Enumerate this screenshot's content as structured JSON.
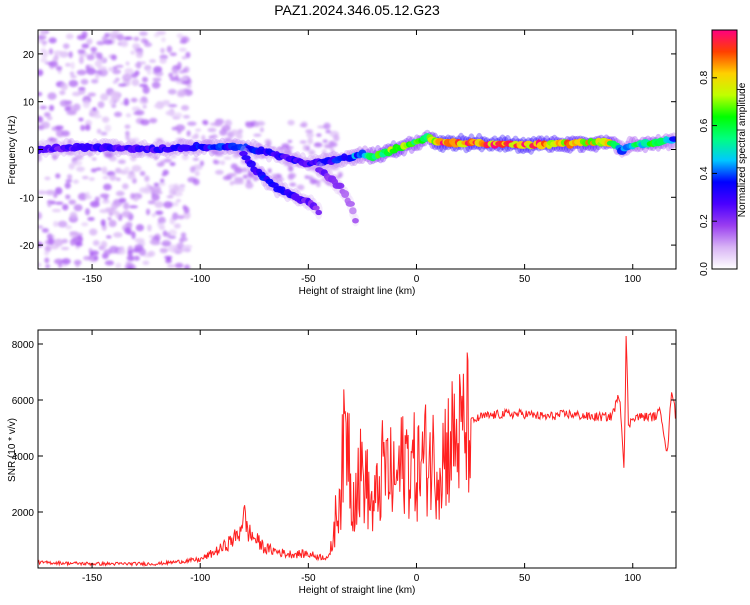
{
  "title": "PAZ1.2024.346.05.12.G23",
  "chart_data": [
    {
      "type": "heatmap",
      "xlabel": "Height of straight line (km)",
      "ylabel": "Frequency (Hz)",
      "xlim": [
        -175,
        120
      ],
      "ylim": [
        -25,
        25
      ],
      "xticks": [
        -150,
        -100,
        -50,
        0,
        50,
        100
      ],
      "yticks": [
        -20,
        -10,
        0,
        10,
        20
      ],
      "colorbar": {
        "label": "Normalized spectral amplitude",
        "range": [
          0,
          1
        ],
        "ticks": [
          "0.0",
          "0.2",
          "0.4",
          "0.6",
          "0.8"
        ],
        "tick_values": [
          0,
          0.2,
          0.4,
          0.6,
          0.8
        ],
        "colormap": [
          "#ffffff",
          "#d8b4f5",
          "#9a3ef0",
          "#4a00ff",
          "#0000ff",
          "#00c8ff",
          "#00ff80",
          "#00ff00",
          "#c0ff00",
          "#ffd000",
          "#ff4000",
          "#ff0080"
        ]
      },
      "ridges": [
        {
          "name": "",
          "x": [
            -175,
            -150,
            -125,
            -100,
            -80,
            -65,
            -50,
            -35,
            -25,
            -20,
            -10,
            0,
            5,
            10,
            50,
            90,
            95,
            100,
            110,
            120
          ],
          "y": [
            0,
            0.5,
            0,
            0.5,
            0.5,
            -1,
            -3,
            -2,
            -1,
            -1.5,
            0,
            1.5,
            2.5,
            1.5,
            1,
            1.5,
            0,
            1,
            1.5,
            2
          ],
          "amplitude": [
            0.25,
            0.3,
            0.3,
            0.35,
            0.35,
            0.3,
            0.3,
            0.35,
            0.45,
            0.6,
            0.7,
            0.6,
            0.6,
            0.9,
            0.9,
            0.75,
            0.4,
            0.5,
            0.6,
            0.4
          ]
        },
        {
          "name": "",
          "x": [
            -80,
            -75,
            -70,
            -65,
            -60,
            -55,
            -50,
            -45
          ],
          "y": [
            -1,
            -4,
            -6,
            -8,
            -9,
            -10,
            -11,
            -13
          ],
          "amplitude": [
            0.3,
            0.3,
            0.35,
            0.35,
            0.3,
            0.3,
            0.25,
            0.2
          ]
        },
        {
          "name": "",
          "x": [
            -45,
            -40,
            -35,
            -30,
            -27
          ],
          "y": [
            -4,
            -6,
            -8,
            -12,
            -17
          ],
          "amplitude": [
            0.25,
            0.2,
            0.2,
            0.15,
            0.15
          ]
        }
      ]
    },
    {
      "type": "line",
      "xlabel": "Height of straight line (km)",
      "ylabel": "SNR (10 * v/v)",
      "xlim": [
        -175,
        120
      ],
      "ylim": [
        0,
        8500
      ],
      "xticks": [
        -150,
        -100,
        -50,
        0,
        50,
        100
      ],
      "yticks": [
        2000,
        4000,
        6000,
        8000
      ],
      "color": "#ff2020",
      "series": [
        {
          "name": "",
          "x": [
            -175,
            -150,
            -120,
            -100,
            -90,
            -82,
            -80,
            -78,
            -70,
            -60,
            -50,
            -45,
            -40,
            -35,
            -32,
            -30,
            -25,
            -20,
            -15,
            -10,
            -5,
            0,
            5,
            10,
            15,
            20,
            25,
            30,
            40,
            50,
            60,
            70,
            80,
            90,
            92,
            94,
            96,
            97,
            98,
            100,
            105,
            110,
            113,
            116,
            118,
            120
          ],
          "y": [
            200,
            150,
            150,
            300,
            700,
            1200,
            2000,
            1300,
            700,
            500,
            500,
            400,
            400,
            3000,
            5500,
            2500,
            3500,
            2000,
            3700,
            3000,
            4000,
            3500,
            4000,
            3700,
            4500,
            4700,
            5200,
            5400,
            5500,
            5500,
            5400,
            5500,
            5400,
            5400,
            5800,
            6200,
            3500,
            8500,
            5000,
            5400,
            5400,
            5400,
            5600,
            4000,
            6500,
            5300
          ]
        }
      ]
    }
  ]
}
